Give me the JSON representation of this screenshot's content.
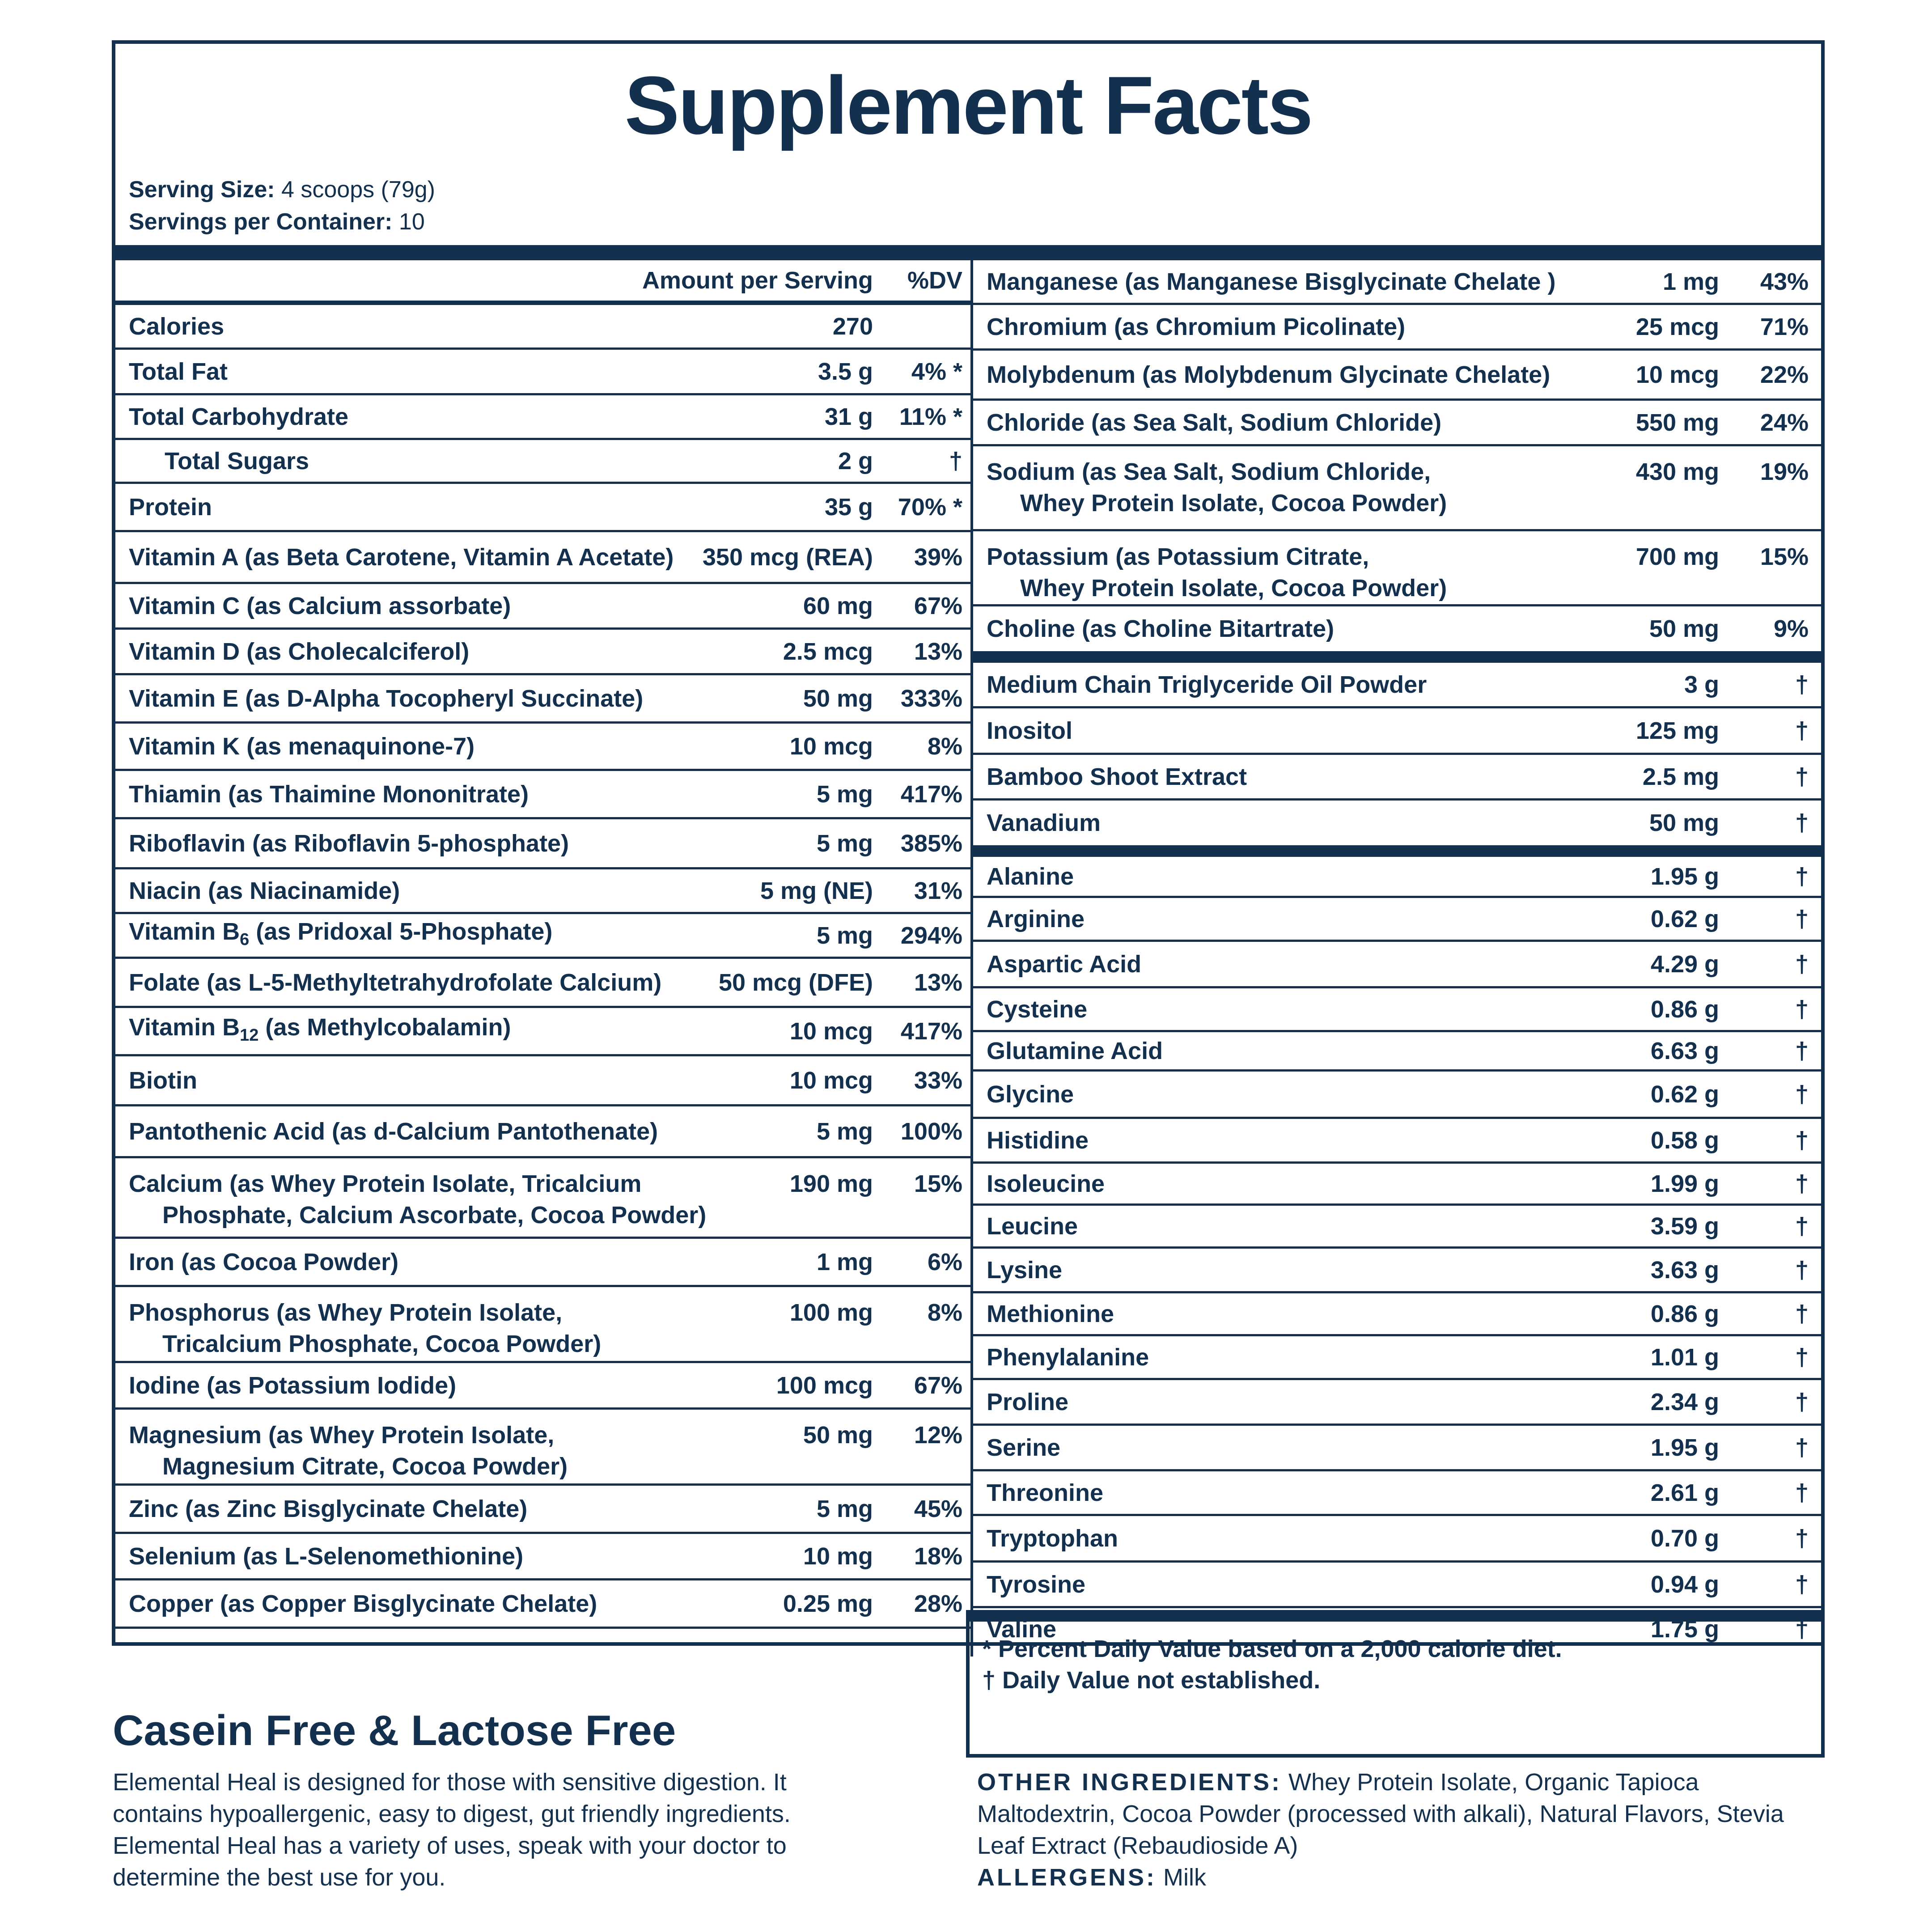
{
  "title": "Supplement Facts",
  "serving": {
    "size_label": "Serving Size:",
    "size_value": " 4 scoops (79g)",
    "per_container_label": "Servings per Container:",
    "per_container_value": " 10"
  },
  "left_header": {
    "amount": "Amount per Serving",
    "dv": "%DV"
  },
  "left_rows": [
    {
      "name": "Calories",
      "amount": "270",
      "dv": ""
    },
    {
      "name": "Total Fat",
      "amount": "3.5 g",
      "dv": "4% *"
    },
    {
      "name": "Total Carbohydrate",
      "amount": "31 g",
      "dv": "11% *"
    },
    {
      "name": "Total Sugars",
      "amount": "2 g",
      "dv": "†"
    },
    {
      "name": "Protein",
      "amount": "35 g",
      "dv": "70% *"
    },
    {
      "name": "Vitamin A (as Beta Carotene, Vitamin A Acetate)",
      "amount": "350 mcg (REA)",
      "dv": "39%"
    },
    {
      "name": "Vitamin C (as Calcium assorbate)",
      "amount": "60 mg",
      "dv": "67%"
    },
    {
      "name": "Vitamin D (as Cholecalciferol)",
      "amount": "2.5 mcg",
      "dv": "13%"
    },
    {
      "name": "Vitamin E (as D-Alpha Tocopheryl Succinate)",
      "amount": "50 mg",
      "dv": "333%"
    },
    {
      "name": "Vitamin K (as menaquinone-7)",
      "amount": "10 mcg",
      "dv": "8%"
    },
    {
      "name": "Thiamin (as Thaimine Mononitrate)",
      "amount": "5 mg",
      "dv": "417%"
    },
    {
      "name": "Riboflavin (as Riboflavin 5-phosphate)",
      "amount": "5 mg",
      "dv": "385%"
    },
    {
      "name": "Niacin (as Niacinamide)",
      "amount": "5 mg (NE)",
      "dv": "31%"
    },
    {
      "name_a": "Vitamin B",
      "name_sub": "6",
      "name_b": " (as Pridoxal 5-Phosphate)",
      "amount": "5 mg",
      "dv": "294%"
    },
    {
      "name": "Folate (as L-5-Methyltetrahydrofolate Calcium)",
      "amount": "50 mcg (DFE)",
      "dv": "13%"
    },
    {
      "name_a": "Vitamin B",
      "name_sub": "12",
      "name_b": " (as Methylcobalamin)",
      "amount": "10 mcg",
      "dv": "417%"
    },
    {
      "name": "Biotin",
      "amount": "10 mcg",
      "dv": "33%"
    },
    {
      "name": "Pantothenic Acid (as d-Calcium Pantothenate)",
      "amount": "5 mg",
      "dv": "100%"
    },
    {
      "name": "Calcium (as Whey Protein Isolate, Tricalcium",
      "name2": "Phosphate,  Calcium Ascorbate, Cocoa Powder)",
      "amount": "190 mg",
      "dv": "15%"
    },
    {
      "name": "Iron (as Cocoa Powder)",
      "amount": "1 mg",
      "dv": "6%"
    },
    {
      "name": "Phosphorus (as Whey Protein Isolate,",
      "name2": "Tricalcium Phosphate, Cocoa Powder)",
      "amount": "100 mg",
      "dv": "8%"
    },
    {
      "name": "Iodine (as Potassium Iodide)",
      "amount": "100 mcg",
      "dv": "67%"
    },
    {
      "name": "Magnesium (as Whey Protein Isolate,",
      "name2": "Magnesium Citrate, Cocoa Powder)",
      "amount": "50 mg",
      "dv": "12%"
    },
    {
      "name": "Zinc (as Zinc Bisglycinate Chelate)",
      "amount": "5 mg",
      "dv": "45%"
    },
    {
      "name": "Selenium (as L-Selenomethionine)",
      "amount": "10 mg",
      "dv": "18%"
    },
    {
      "name": "Copper (as Copper Bisglycinate Chelate)",
      "amount": "0.25 mg",
      "dv": "28%"
    }
  ],
  "right_rows_a": [
    {
      "name": "Manganese (as Manganese Bisglycinate Chelate )",
      "amount": "1 mg",
      "dv": "43%"
    },
    {
      "name": "Chromium (as Chromium Picolinate)",
      "amount": "25 mcg",
      "dv": "71%"
    },
    {
      "name": "Molybdenum (as Molybdenum Glycinate Chelate)",
      "amount": "10 mcg",
      "dv": "22%"
    },
    {
      "name": "Chloride (as Sea Salt, Sodium Chloride)",
      "amount": "550 mg",
      "dv": "24%"
    },
    {
      "name": "Sodium (as Sea Salt, Sodium Chloride,",
      "name2": "Whey Protein Isolate, Cocoa Powder)",
      "amount": "430 mg",
      "dv": "19%"
    },
    {
      "name": "Potassium (as Potassium Citrate,",
      "name2": "Whey Protein Isolate, Cocoa Powder)",
      "amount": "700 mg",
      "dv": "15%"
    },
    {
      "name": "Choline (as Choline Bitartrate)",
      "amount": "50 mg",
      "dv": "9%"
    }
  ],
  "right_rows_b": [
    {
      "name": "Medium Chain Triglyceride Oil Powder",
      "amount": "3 g",
      "dv": "†"
    },
    {
      "name": "Inositol",
      "amount": "125 mg",
      "dv": "†"
    },
    {
      "name": "Bamboo Shoot Extract",
      "amount": "2.5 mg",
      "dv": "†"
    },
    {
      "name": "Vanadium",
      "amount": "50 mg",
      "dv": "†"
    }
  ],
  "right_rows_c": [
    {
      "name": "Alanine",
      "amount": "1.95 g",
      "dv": "†"
    },
    {
      "name": "Arginine",
      "amount": "0.62 g",
      "dv": "†"
    },
    {
      "name": "Aspartic Acid",
      "amount": "4.29 g",
      "dv": "†"
    },
    {
      "name": "Cysteine",
      "amount": "0.86 g",
      "dv": "†"
    },
    {
      "name": "Glutamine Acid",
      "amount": "6.63 g",
      "dv": "†"
    },
    {
      "name": "Glycine",
      "amount": "0.62 g",
      "dv": "†"
    },
    {
      "name": "Histidine",
      "amount": "0.58 g",
      "dv": "†"
    },
    {
      "name": "Isoleucine",
      "amount": "1.99 g",
      "dv": "†"
    },
    {
      "name": "Leucine",
      "amount": "3.59 g",
      "dv": "†"
    },
    {
      "name": "Lysine",
      "amount": "3.63 g",
      "dv": "†"
    },
    {
      "name": "Methionine",
      "amount": "0.86 g",
      "dv": "†"
    },
    {
      "name": "Phenylalanine",
      "amount": "1.01 g",
      "dv": "†"
    },
    {
      "name": "Proline",
      "amount": "2.34 g",
      "dv": "†"
    },
    {
      "name": "Serine",
      "amount": "1.95 g",
      "dv": "†"
    },
    {
      "name": "Threonine",
      "amount": "2.61 g",
      "dv": "†"
    },
    {
      "name": "Tryptophan",
      "amount": "0.70 g",
      "dv": "†"
    },
    {
      "name": "Tyrosine",
      "amount": "0.94 g",
      "dv": "†"
    },
    {
      "name": "Valine",
      "amount": "1.75 g",
      "dv": "†"
    }
  ],
  "footnotes": {
    "line1": "* Percent Daily Value based on a 2,000 calorie diet.",
    "line2": "† Daily Value not established."
  },
  "casein": {
    "title": "Casein Free & Lactose Free",
    "body": "Elemental Heal is designed for those with sensitive digestion. It contains hypoallergenic, easy to digest, gut friendly ingredients. Elemental Heal has a variety of uses, speak with your doctor to determine the best use for you."
  },
  "other": {
    "ingredients_label": "OTHER INGREDIENTS:",
    "ingredients_value": " Whey Protein Isolate, Organic Tapioca Maltodextrin, Cocoa Powder (processed with alkali), Natural Flavors, Stevia Leaf Extract (Rebaudioside A)",
    "allergens_label": "ALLERGENS:",
    "allergens_value": " Milk"
  }
}
